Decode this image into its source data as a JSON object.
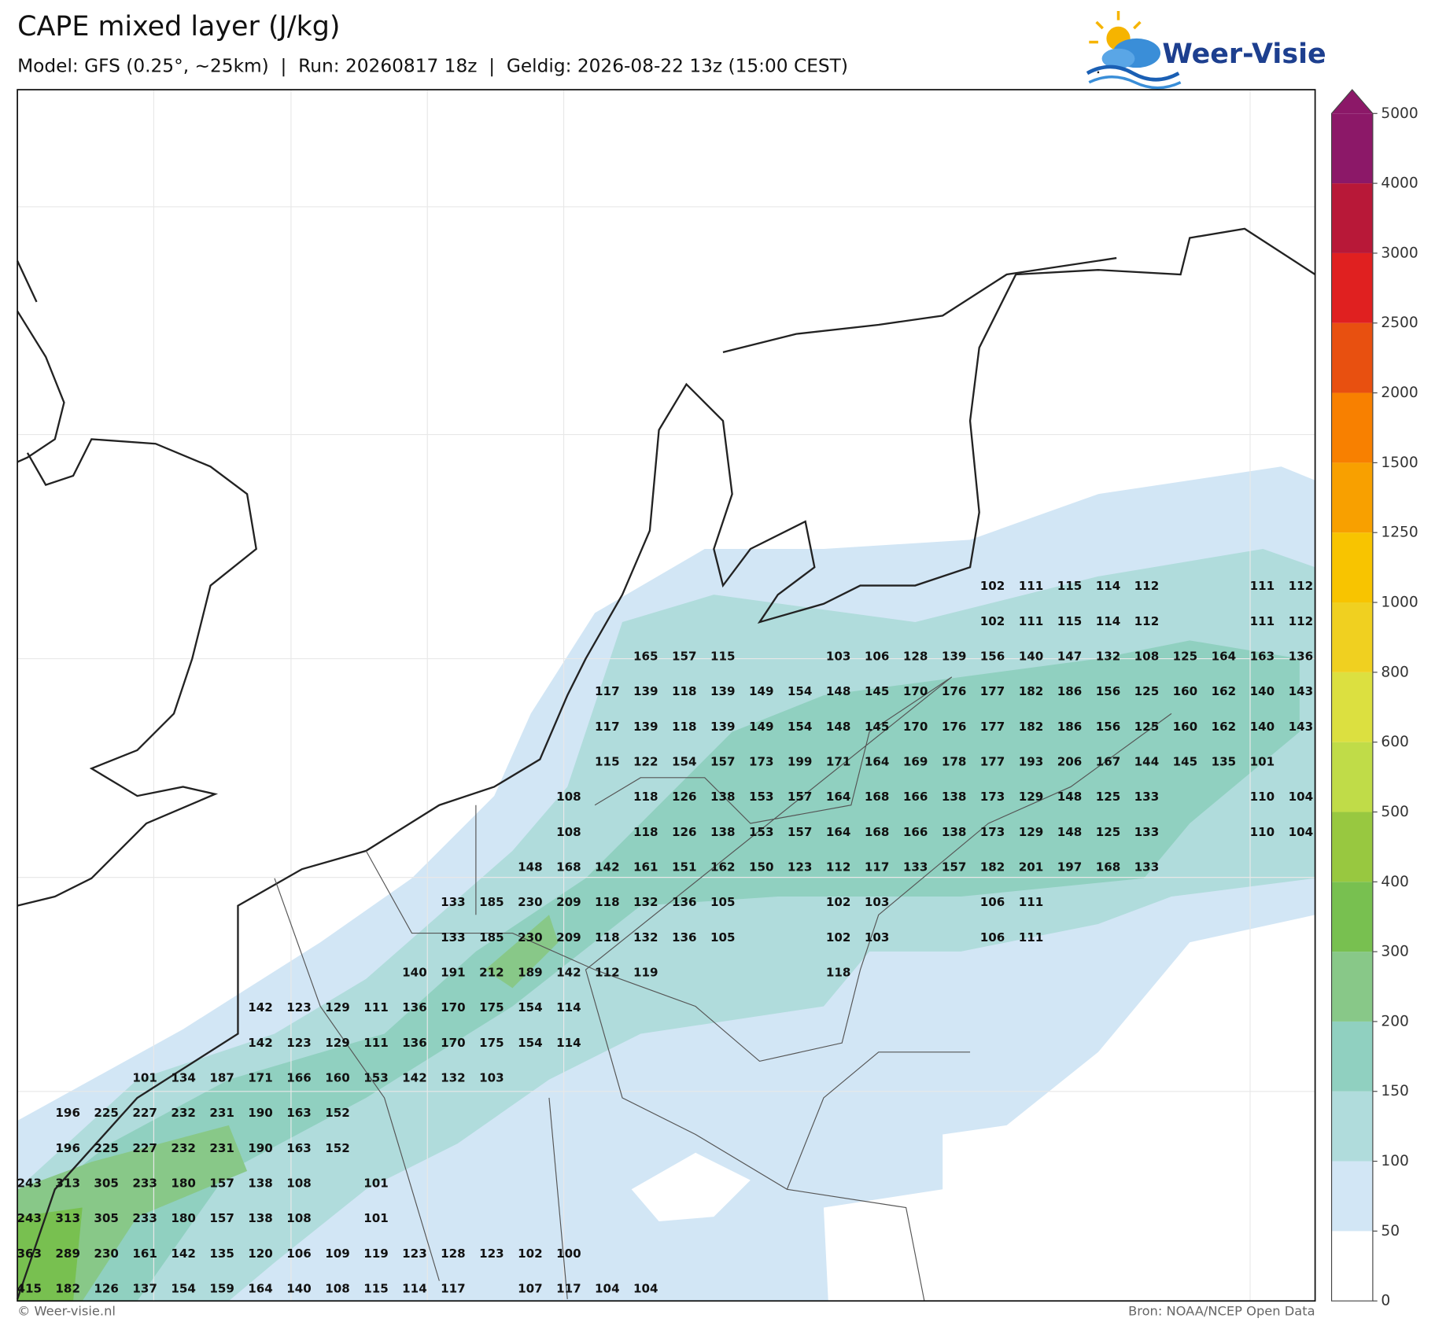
{
  "header": {
    "title": "CAPE mixed layer (J/kg)",
    "subtitle": "Model: GFS (0.25°, ~25km)  |  Run: 20260817 18z  |  Geldig: 2026-08-22 13z (15:00 CEST)"
  },
  "logo": "Weer-Visie",
  "map": {
    "value_rows": [
      [
        null,
        null,
        null,
        null,
        null,
        null,
        null,
        null,
        null,
        null,
        null,
        null,
        null,
        null,
        null,
        null,
        null,
        null,
        null,
        null,
        null,
        null,
        null,
        null,
        null,
        102,
        111,
        115,
        114,
        112,
        null,
        null,
        111,
        112
      ],
      [
        null,
        null,
        null,
        null,
        null,
        null,
        null,
        null,
        null,
        null,
        null,
        null,
        null,
        null,
        null,
        null,
        null,
        null,
        null,
        null,
        null,
        null,
        null,
        null,
        null,
        102,
        111,
        115,
        114,
        112,
        null,
        null,
        111,
        112
      ],
      [
        null,
        null,
        null,
        null,
        null,
        null,
        null,
        null,
        null,
        null,
        null,
        null,
        null,
        null,
        null,
        null,
        165,
        157,
        115,
        null,
        null,
        103,
        106,
        128,
        139,
        156,
        140,
        147,
        132,
        108,
        125,
        164,
        163,
        136
      ],
      [
        null,
        null,
        null,
        null,
        null,
        null,
        null,
        null,
        null,
        null,
        null,
        null,
        null,
        null,
        null,
        117,
        139,
        118,
        139,
        149,
        154,
        148,
        145,
        170,
        176,
        177,
        182,
        186,
        156,
        125,
        160,
        162,
        140,
        143
      ],
      [
        null,
        null,
        null,
        null,
        null,
        null,
        null,
        null,
        null,
        null,
        null,
        null,
        null,
        null,
        null,
        117,
        139,
        118,
        139,
        149,
        154,
        148,
        145,
        170,
        176,
        177,
        182,
        186,
        156,
        125,
        160,
        162,
        140,
        143
      ],
      [
        null,
        null,
        null,
        null,
        null,
        null,
        null,
        null,
        null,
        null,
        null,
        null,
        null,
        null,
        null,
        115,
        122,
        154,
        157,
        173,
        199,
        171,
        164,
        169,
        178,
        177,
        193,
        206,
        167,
        144,
        145,
        135,
        101,
        null
      ],
      [
        null,
        null,
        null,
        null,
        null,
        null,
        null,
        null,
        null,
        null,
        null,
        null,
        null,
        null,
        108,
        null,
        118,
        126,
        138,
        153,
        157,
        164,
        168,
        166,
        138,
        173,
        129,
        148,
        125,
        133,
        null,
        null,
        110,
        104
      ],
      [
        null,
        null,
        null,
        null,
        null,
        null,
        null,
        null,
        null,
        null,
        null,
        null,
        null,
        null,
        108,
        null,
        118,
        126,
        138,
        153,
        157,
        164,
        168,
        166,
        138,
        173,
        129,
        148,
        125,
        133,
        null,
        null,
        110,
        104
      ],
      [
        null,
        null,
        null,
        null,
        null,
        null,
        null,
        null,
        null,
        null,
        null,
        null,
        null,
        148,
        168,
        142,
        161,
        151,
        162,
        150,
        123,
        112,
        117,
        133,
        157,
        182,
        201,
        197,
        168,
        133,
        null,
        null,
        null,
        null
      ],
      [
        null,
        null,
        null,
        null,
        null,
        null,
        null,
        null,
        null,
        null,
        null,
        133,
        185,
        230,
        209,
        118,
        132,
        136,
        105,
        null,
        null,
        102,
        103,
        null,
        null,
        106,
        111,
        null,
        null,
        null,
        null,
        null,
        null,
        null
      ],
      [
        null,
        null,
        null,
        null,
        null,
        null,
        null,
        null,
        null,
        null,
        null,
        133,
        185,
        230,
        209,
        118,
        132,
        136,
        105,
        null,
        null,
        102,
        103,
        null,
        null,
        106,
        111,
        null,
        null,
        null,
        null,
        null,
        null,
        null
      ],
      [
        null,
        null,
        null,
        null,
        null,
        null,
        null,
        null,
        null,
        null,
        140,
        191,
        212,
        189,
        142,
        112,
        119,
        null,
        null,
        null,
        null,
        118,
        null,
        null,
        null,
        null,
        null,
        null,
        null,
        null,
        null,
        null,
        null,
        null
      ],
      [
        null,
        null,
        null,
        null,
        null,
        null,
        142,
        123,
        129,
        111,
        136,
        170,
        175,
        154,
        114,
        null,
        null,
        null,
        null,
        null,
        null,
        null,
        null,
        null,
        null,
        null,
        null,
        null,
        null,
        null,
        null,
        null,
        null,
        null
      ],
      [
        null,
        null,
        null,
        null,
        null,
        null,
        142,
        123,
        129,
        111,
        136,
        170,
        175,
        154,
        114,
        null,
        null,
        null,
        null,
        null,
        null,
        null,
        null,
        null,
        null,
        null,
        null,
        null,
        null,
        null,
        null,
        null,
        null,
        null
      ],
      [
        null,
        null,
        null,
        101,
        134,
        187,
        171,
        166,
        160,
        153,
        142,
        132,
        103,
        null,
        null,
        null,
        null,
        null,
        null,
        null,
        null,
        null,
        null,
        null,
        null,
        null,
        null,
        null,
        null,
        null,
        null,
        null,
        null,
        null
      ],
      [
        null,
        196,
        225,
        227,
        232,
        231,
        190,
        163,
        152,
        null,
        null,
        null,
        null,
        null,
        null,
        null,
        null,
        null,
        null,
        null,
        null,
        null,
        null,
        null,
        null,
        null,
        null,
        null,
        null,
        null,
        null,
        null,
        null,
        null
      ],
      [
        null,
        196,
        225,
        227,
        232,
        231,
        190,
        163,
        152,
        null,
        null,
        null,
        null,
        null,
        null,
        null,
        null,
        null,
        null,
        null,
        null,
        null,
        null,
        null,
        null,
        null,
        null,
        null,
        null,
        null,
        null,
        null,
        null,
        null
      ],
      [
        243,
        313,
        305,
        233,
        180,
        157,
        138,
        108,
        null,
        101,
        null,
        null,
        null,
        null,
        null,
        null,
        null,
        null,
        null,
        null,
        null,
        null,
        null,
        null,
        null,
        null,
        null,
        null,
        null,
        null,
        null,
        null,
        null,
        null
      ],
      [
        243,
        313,
        305,
        233,
        180,
        157,
        138,
        108,
        null,
        101,
        null,
        null,
        null,
        null,
        null,
        null,
        null,
        null,
        null,
        null,
        null,
        null,
        null,
        null,
        null,
        null,
        null,
        null,
        null,
        null,
        null,
        null,
        null,
        null
      ],
      [
        363,
        289,
        230,
        161,
        142,
        135,
        120,
        106,
        109,
        119,
        123,
        128,
        123,
        102,
        100,
        null,
        null,
        null,
        null,
        null,
        null,
        null,
        null,
        null,
        null,
        null,
        null,
        null,
        null,
        null,
        null,
        null,
        null,
        null
      ],
      [
        415,
        182,
        126,
        137,
        154,
        159,
        164,
        140,
        108,
        115,
        114,
        117,
        null,
        107,
        117,
        104,
        104,
        null,
        null,
        null,
        null,
        null,
        null,
        null,
        null,
        null,
        null,
        null,
        null,
        null,
        null,
        null,
        null,
        null
      ]
    ]
  },
  "colorbar": {
    "ticks": [
      0,
      50,
      100,
      150,
      200,
      300,
      400,
      500,
      600,
      800,
      1000,
      1250,
      1500,
      2000,
      2500,
      3000,
      4000,
      5000
    ],
    "colors": [
      "#ffffff",
      "#d2e6f5",
      "#b0dcdc",
      "#90d0c0",
      "#88c888",
      "#78c050",
      "#98c840",
      "#c0dc48",
      "#dce040",
      "#f0d020",
      "#f8c400",
      "#f8a000",
      "#f88000",
      "#e85010",
      "#e02020",
      "#b81838",
      "#8c1868"
    ],
    "over_color": "#8c1868"
  },
  "footer": {
    "left": "© Weer-visie.nl",
    "right": "Bron: NOAA/NCEP Open Data"
  }
}
